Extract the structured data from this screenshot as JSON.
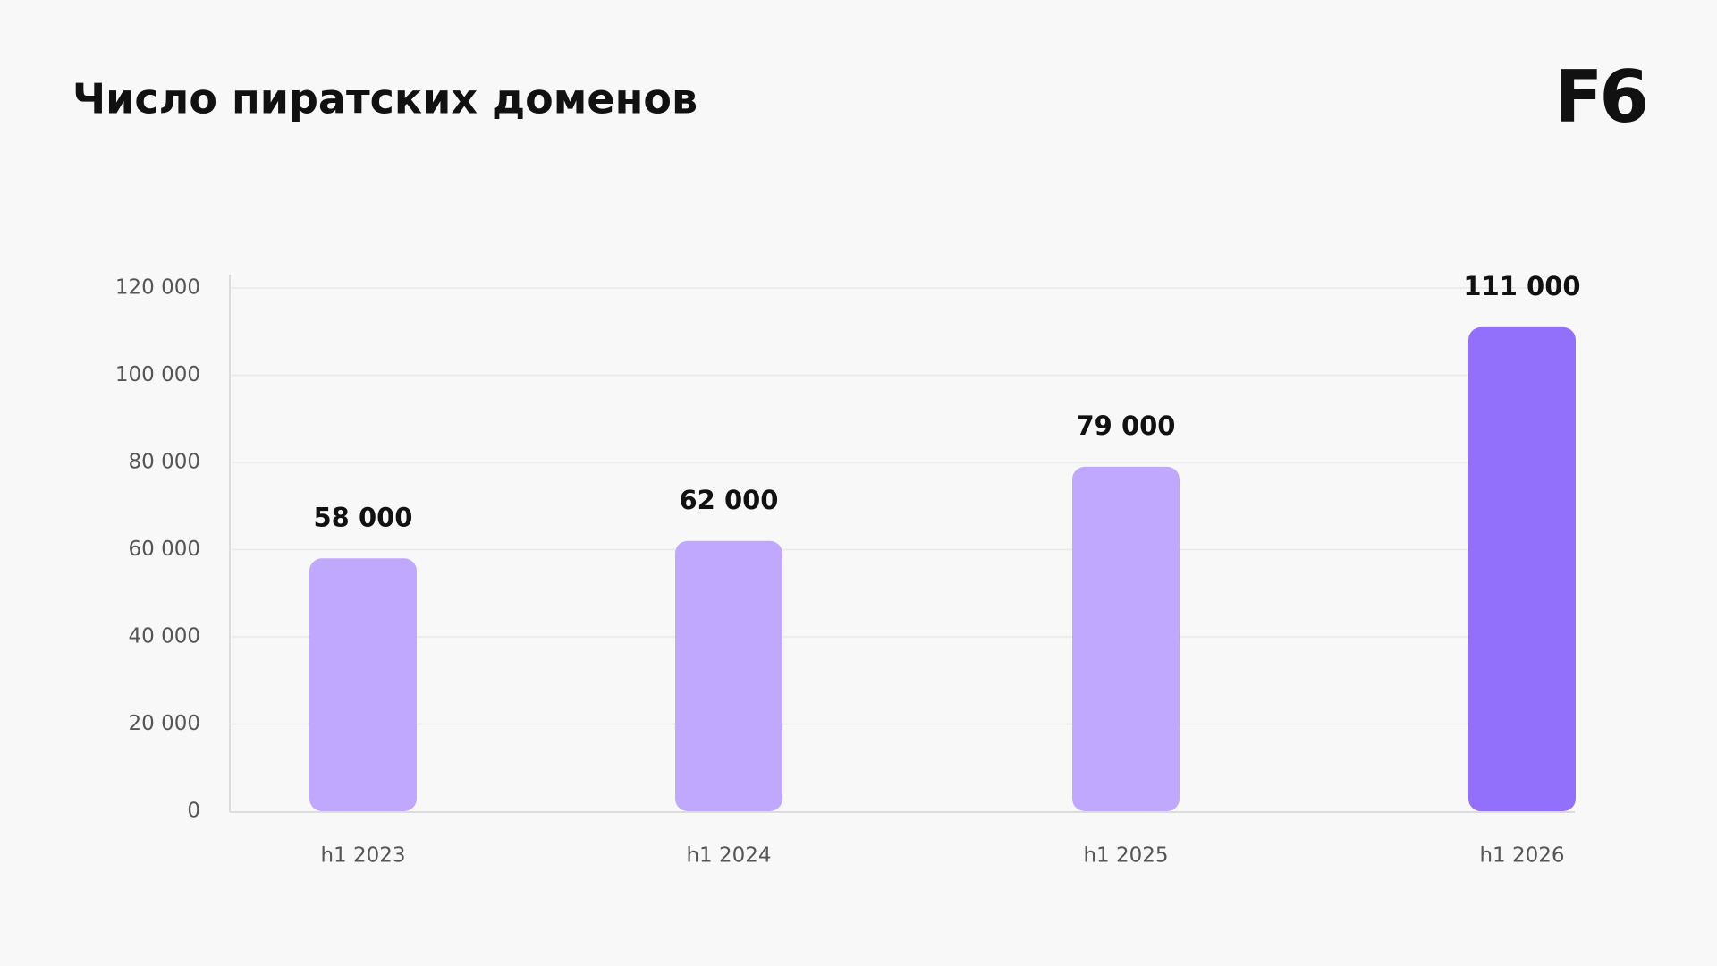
{
  "logo": "F6",
  "chart_data": {
    "type": "bar",
    "title": "Число пиратских доменов",
    "categories": [
      "h1 2023",
      "h1 2024",
      "h1 2025",
      "h1 2026"
    ],
    "values": [
      58000,
      62000,
      79000,
      111000
    ],
    "value_labels": [
      "58 000",
      "62 000",
      "79 000",
      "111 000"
    ],
    "colors": [
      "#c0a8ff",
      "#c0a8ff",
      "#c0a8ff",
      "#9370fb"
    ],
    "ylim": [
      0,
      120000
    ],
    "yticks": [
      0,
      {
        "value": 20000,
        "label": "20 000"
      },
      {
        "value": 40000,
        "label": "40 000"
      },
      {
        "value": 60000,
        "label": "60 000"
      },
      {
        "value": 80000,
        "label": "80 000"
      },
      {
        "value": 100000,
        "label": "100 000"
      },
      {
        "value": 120000,
        "label": "120 000"
      }
    ],
    "grid": true
  }
}
